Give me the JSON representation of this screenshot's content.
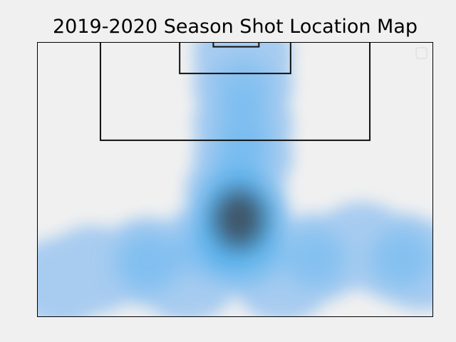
{
  "chart_data": {
    "type": "heatmap",
    "subtype": "kde-density",
    "title": "2019-2020 Season Shot Location Map",
    "xlabel": "",
    "ylabel": "",
    "xlim": [
      0,
      100
    ],
    "ylim": [
      0,
      70
    ],
    "grid": false,
    "axes_visible": false,
    "legend": {
      "placement": "top-right",
      "entries": []
    },
    "colors": {
      "background": "#f0f0f0",
      "density_low": "#a8ccf0",
      "density_mid": "#4fb0ef",
      "density_high": "#3c4a5a",
      "pitch_lines": "#111111"
    },
    "pitch": {
      "penalty_box": {
        "x": [
          16,
          84
        ],
        "y": [
          0,
          25
        ]
      },
      "six_yard_box": {
        "x": [
          36,
          64
        ],
        "y": [
          0,
          8
        ]
      },
      "goal": {
        "x": [
          44.5,
          56
        ],
        "y": [
          0,
          1.2
        ]
      }
    },
    "density": [
      {
        "x": 51,
        "y": 45,
        "weight": 1.0
      },
      {
        "x": 52,
        "y": 53,
        "weight": 0.75
      },
      {
        "x": 44,
        "y": 52,
        "weight": 0.55
      },
      {
        "x": 50,
        "y": 38,
        "weight": 0.6
      },
      {
        "x": 52,
        "y": 29,
        "weight": 0.45
      },
      {
        "x": 52,
        "y": 21,
        "weight": 0.45
      },
      {
        "x": 52,
        "y": 11,
        "weight": 0.45
      },
      {
        "x": 52,
        "y": 3,
        "weight": 0.4
      },
      {
        "x": 28,
        "y": 56,
        "weight": 0.55
      },
      {
        "x": 14,
        "y": 58,
        "weight": 0.4
      },
      {
        "x": 6,
        "y": 61,
        "weight": 0.35
      },
      {
        "x": 70,
        "y": 55,
        "weight": 0.5
      },
      {
        "x": 82,
        "y": 52,
        "weight": 0.4
      },
      {
        "x": 92,
        "y": 55,
        "weight": 0.5
      },
      {
        "x": 97,
        "y": 57,
        "weight": 0.3
      },
      {
        "x": 38,
        "y": 60,
        "weight": 0.35
      },
      {
        "x": 62,
        "y": 60,
        "weight": 0.35
      }
    ]
  }
}
